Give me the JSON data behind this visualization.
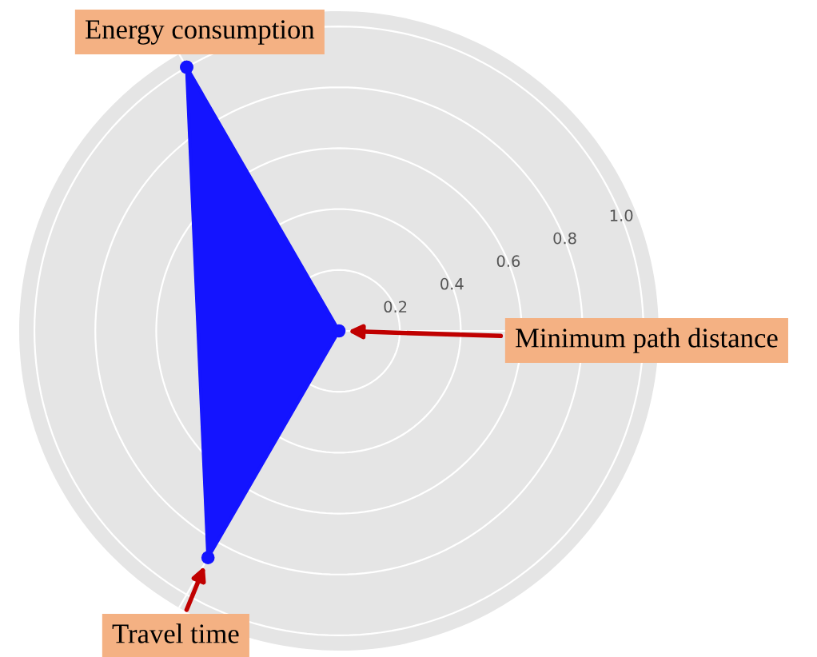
{
  "chart_data": {
    "type": "radar",
    "categories": [
      "Energy consumption",
      "Minimum path distance",
      "Travel time"
    ],
    "series": [
      {
        "color": "#1414ff",
        "values": [
          1.0,
          0.0,
          0.86
        ]
      }
    ],
    "ylim": [
      0,
      1.05
    ],
    "yticks": [
      0.2,
      0.4,
      0.6,
      0.8,
      {
        "value": 1,
        "label": "1.0"
      }
    ],
    "grid": true,
    "marker": "circle",
    "line_style": "solid"
  }
}
